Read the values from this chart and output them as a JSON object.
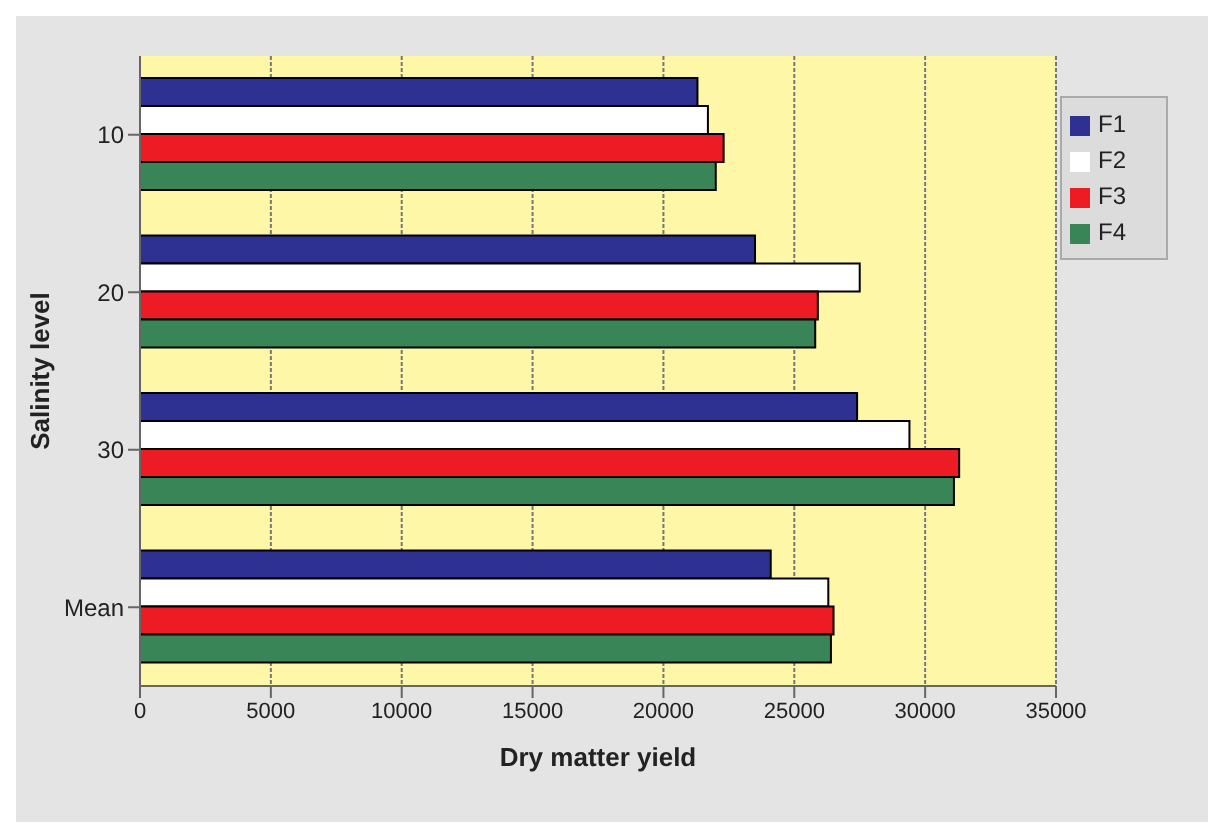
{
  "chart_data": {
    "type": "bar",
    "orientation": "horizontal",
    "xlabel": "Dry matter yield",
    "ylabel": "Salinity level",
    "categories": [
      "10",
      "20",
      "30",
      "Mean"
    ],
    "series": [
      {
        "name": "F1",
        "color": "#2e3192",
        "values": [
          21300,
          23500,
          27400,
          24100
        ]
      },
      {
        "name": "F2",
        "color": "#ffffff",
        "values": [
          21700,
          27500,
          29400,
          26300
        ]
      },
      {
        "name": "F3",
        "color": "#ed1c24",
        "values": [
          22300,
          25900,
          31300,
          26500
        ]
      },
      {
        "name": "F4",
        "color": "#3a8558",
        "values": [
          22000,
          25800,
          31100,
          26400
        ]
      }
    ],
    "xlim": [
      0,
      35000
    ],
    "xticks": [
      0,
      5000,
      10000,
      15000,
      20000,
      25000,
      30000,
      35000
    ],
    "grid": "x",
    "legend": "top right"
  }
}
